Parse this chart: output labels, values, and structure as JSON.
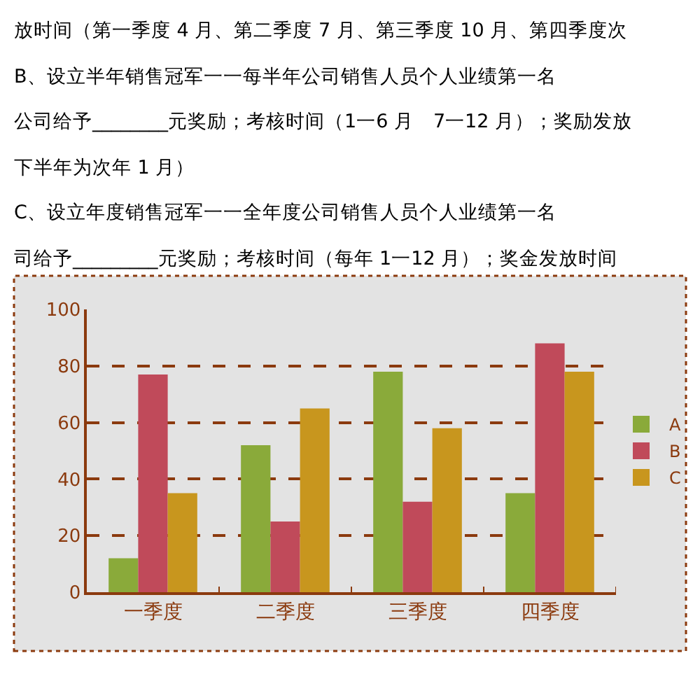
{
  "chart_data": {
    "type": "bar",
    "categories": [
      "一季度",
      "二季度",
      "三季度",
      "四季度"
    ],
    "series": [
      {
        "name": "A",
        "color": "#8aaa3a",
        "values": [
          12,
          52,
          78,
          35
        ]
      },
      {
        "name": "B",
        "color": "#c04a5a",
        "values": [
          77,
          25,
          32,
          88
        ]
      },
      {
        "name": "C",
        "color": "#c8961e",
        "values": [
          35,
          65,
          58,
          78
        ]
      }
    ],
    "ylim": [
      0,
      100
    ],
    "yticks": [
      0,
      20,
      40,
      60,
      80,
      100
    ],
    "grid": "y",
    "legend": "right",
    "annotations": [
      "放时间（第一季度 4 月、第二季度 7 月、第三季度 10 月、第四季度次",
      "B、设立半年销售冠军一一每半年公司销售人员个人业绩第一名",
      "公司给予________元奖励；考核时间（1一6 月　7一12 月）；奖励发放",
      "下半年为次年 1 月）",
      "C、设立年度销售冠军一一全年度公司销售人员个人业绩第一名",
      "司给予_________元奖励；考核时间（每年 1一12 月）；奖金发放时间"
    ]
  }
}
